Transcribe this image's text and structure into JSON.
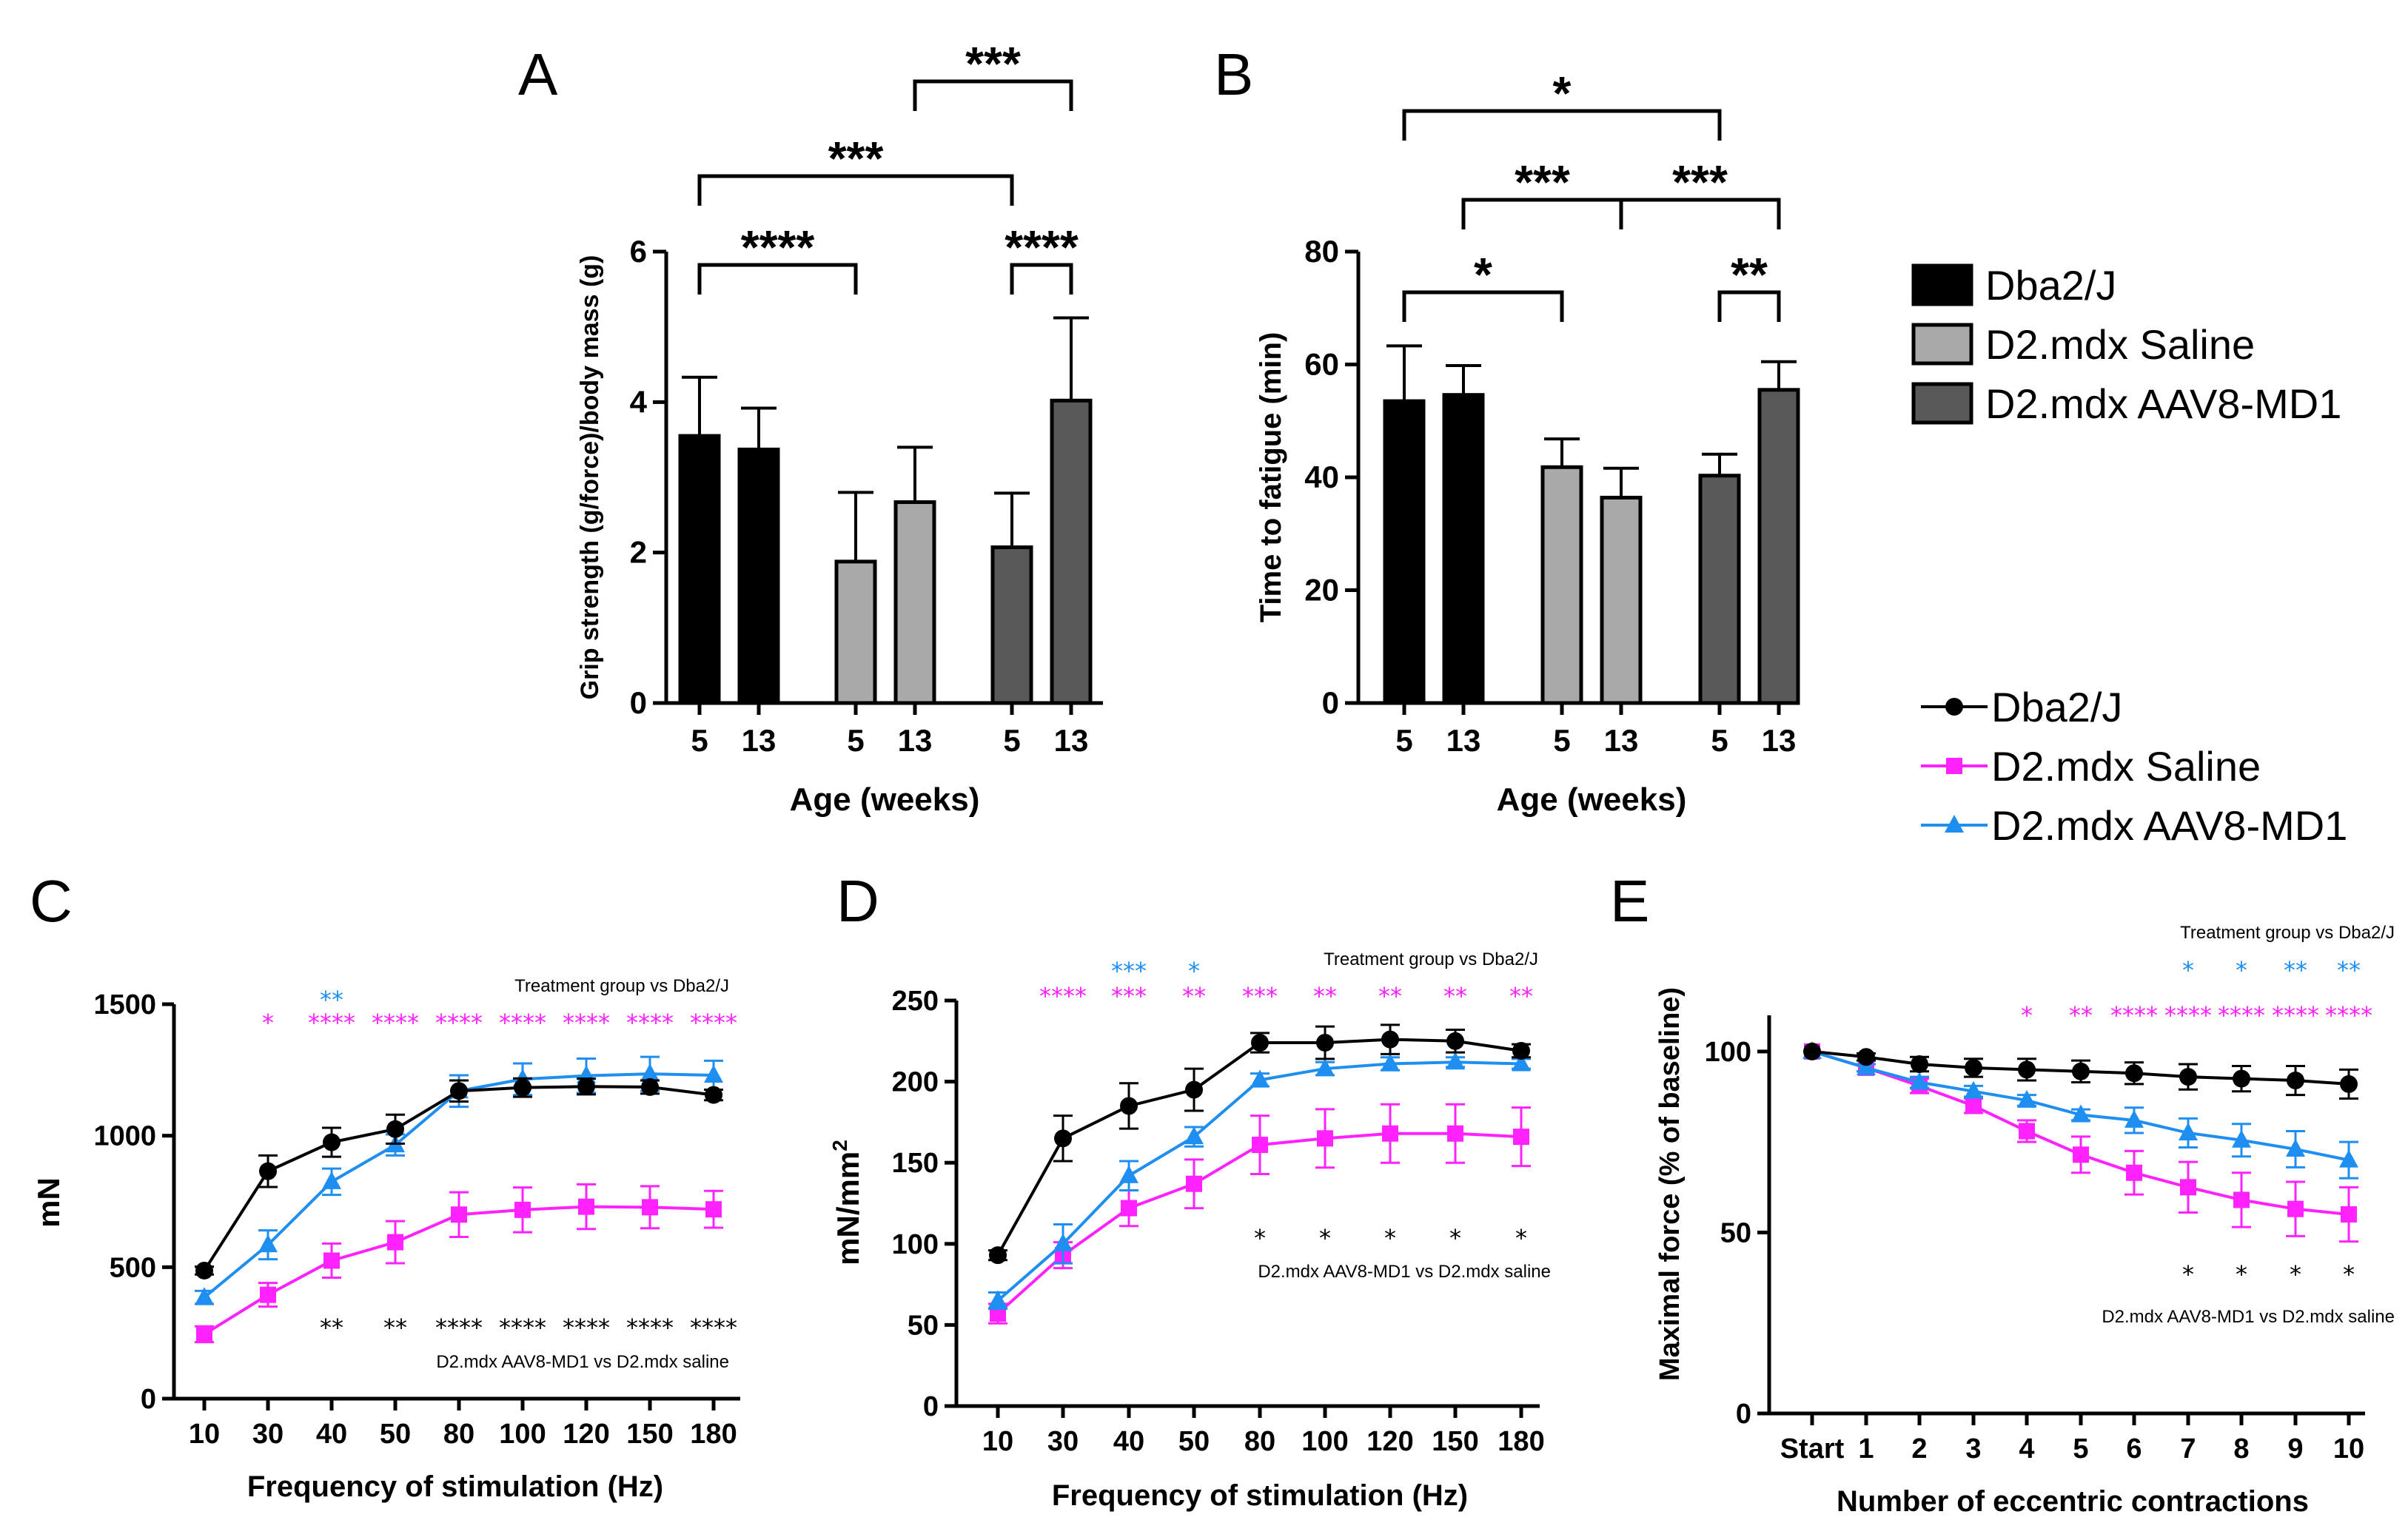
{
  "colors": {
    "black": "#000000",
    "grey": "#a9a9a9",
    "darkgrey": "#595959",
    "magenta": "#ff22ff",
    "blue": "#1e8ff0"
  },
  "legend_bar": [
    {
      "label": "Dba2/J",
      "color": "#000000"
    },
    {
      "label": "D2.mdx Saline",
      "color": "#a9a9a9"
    },
    {
      "label": "D2.mdx AAV8-MD1",
      "color": "#595959"
    }
  ],
  "legend_line": [
    {
      "label": "Dba2/J",
      "color": "#000000",
      "marker": "circle"
    },
    {
      "label": "D2.mdx Saline",
      "color": "#ff22ff",
      "marker": "square"
    },
    {
      "label": "D2.mdx AAV8-MD1",
      "color": "#1e8ff0",
      "marker": "triangle"
    }
  ],
  "chart_data": [
    {
      "panel": "A",
      "type": "bar",
      "xlabel": "Age (weeks)",
      "ylabel": "Grip strength (g/force)/body mass (g)",
      "ylim": [
        0,
        6
      ],
      "yticks": [
        "0",
        "2",
        "4",
        "6"
      ],
      "categories": [
        "5",
        "13",
        "5",
        "13",
        "5",
        "13"
      ],
      "values": [
        3.55,
        3.37,
        1.88,
        2.67,
        2.07,
        4.02
      ],
      "errors": [
        0.78,
        0.55,
        0.92,
        0.73,
        0.72,
        1.1
      ],
      "colors": [
        "#000000",
        "#000000",
        "#a9a9a9",
        "#a9a9a9",
        "#595959",
        "#595959"
      ],
      "brackets": [
        {
          "from": 0,
          "to": 2,
          "label": "****"
        },
        {
          "from": 4,
          "to": 5,
          "label": "****"
        },
        {
          "from": 0,
          "to": 4,
          "label": "***"
        },
        {
          "from": 3,
          "to": 5,
          "label": "***"
        }
      ]
    },
    {
      "panel": "B",
      "type": "bar",
      "xlabel": "Age (weeks)",
      "ylabel": "Time to fatigue (min)",
      "ylim": [
        0,
        80
      ],
      "yticks": [
        "0",
        "20",
        "40",
        "60",
        "80"
      ],
      "categories": [
        "5",
        "13",
        "5",
        "13",
        "5",
        "13"
      ],
      "values": [
        53.5,
        54.6,
        41.8,
        36.4,
        40.3,
        55.5
      ],
      "errors": [
        9.8,
        5.2,
        5.0,
        5.2,
        3.8,
        5.0
      ],
      "colors": [
        "#000000",
        "#000000",
        "#a9a9a9",
        "#a9a9a9",
        "#595959",
        "#595959"
      ],
      "brackets": [
        {
          "from": 0,
          "to": 2,
          "label": "*"
        },
        {
          "from": 4,
          "to": 5,
          "label": "**"
        },
        {
          "from": 1,
          "to": 3,
          "label": "***"
        },
        {
          "from": 3,
          "to": 5,
          "label": "***"
        },
        {
          "from": 0,
          "to": 4,
          "label": "*"
        }
      ]
    },
    {
      "panel": "C",
      "type": "line",
      "xlabel": "Frequency of stimulation (Hz)",
      "ylabel": "mN",
      "ylim": [
        0,
        1500
      ],
      "yticks": [
        "0",
        "500",
        "1000",
        "1500"
      ],
      "categories": [
        "10",
        "30",
        "40",
        "50",
        "80",
        "100",
        "120",
        "150",
        "180"
      ],
      "series": [
        {
          "name": "Dba2/J",
          "color": "#000000",
          "marker": "circle",
          "values": [
            487,
            865,
            975,
            1025,
            1170,
            1183,
            1187,
            1185,
            1155
          ],
          "errors": [
            15,
            60,
            55,
            55,
            40,
            35,
            30,
            25,
            20
          ]
        },
        {
          "name": "D2.mdx Saline",
          "color": "#ff22ff",
          "marker": "square",
          "values": [
            245,
            395,
            525,
            595,
            700,
            718,
            730,
            728,
            720
          ],
          "errors": [
            30,
            45,
            65,
            80,
            85,
            85,
            85,
            80,
            70
          ]
        },
        {
          "name": "D2.mdx AAV8-MD1",
          "color": "#1e8ff0",
          "marker": "triangle",
          "values": [
            385,
            585,
            825,
            965,
            1170,
            1215,
            1228,
            1235,
            1230
          ],
          "errors": [
            25,
            55,
            50,
            40,
            60,
            60,
            65,
            65,
            55
          ]
        }
      ],
      "annotation_top": "Treatment group vs Dba2/J",
      "annotation_bottom": "D2.mdx AAV8-MD1 vs D2.mdx saline",
      "sig_magenta": [
        "",
        "*",
        "****",
        "****",
        "****",
        "****",
        "****",
        "****",
        "****"
      ],
      "sig_blue": [
        "",
        "",
        "**",
        "",
        "",
        "",
        "",
        "",
        ""
      ],
      "sig_black": [
        "",
        "",
        "**",
        "**",
        "****",
        "****",
        "****",
        "****",
        "****"
      ]
    },
    {
      "panel": "D",
      "type": "line",
      "xlabel": "Frequency of stimulation (Hz)",
      "ylabel_main": "mN/mm",
      "ylabel_sup": "2",
      "ylim": [
        0,
        250
      ],
      "yticks": [
        "0",
        "50",
        "100",
        "150",
        "200",
        "250"
      ],
      "categories": [
        "10",
        "30",
        "40",
        "50",
        "80",
        "100",
        "120",
        "150",
        "180"
      ],
      "series": [
        {
          "name": "Dba2/J",
          "color": "#000000",
          "marker": "circle",
          "values": [
            93,
            165,
            185,
            195,
            224,
            224,
            226,
            225,
            219
          ],
          "errors": [
            3,
            14,
            14,
            13,
            6,
            10,
            9,
            7,
            4
          ]
        },
        {
          "name": "D2.mdx Saline",
          "color": "#ff22ff",
          "marker": "square",
          "values": [
            57,
            93,
            122,
            137,
            161,
            165,
            168,
            168,
            166
          ],
          "errors": [
            6,
            8,
            11,
            15,
            18,
            18,
            18,
            18,
            18
          ]
        },
        {
          "name": "D2.mdx AAV8-MD1",
          "color": "#1e8ff0",
          "marker": "triangle",
          "values": [
            65,
            100,
            142,
            166,
            201,
            208,
            211,
            212,
            211
          ],
          "errors": [
            5,
            12,
            9,
            6,
            4,
            4,
            4,
            3,
            3
          ]
        }
      ],
      "annotation_top": "Treatment group vs Dba2/J",
      "annotation_bottom": "D2.mdx AAV8-MD1 vs D2.mdx saline",
      "sig_magenta": [
        "",
        "****",
        "***",
        "**",
        "***",
        "**",
        "**",
        "**",
        "**"
      ],
      "sig_blue": [
        "",
        "",
        "***",
        "*",
        "",
        "",
        "",
        "",
        ""
      ],
      "sig_black": [
        "",
        "",
        "",
        "",
        "*",
        "*",
        "*",
        "*",
        "*"
      ]
    },
    {
      "panel": "E",
      "type": "line",
      "xlabel": "Number of eccentric contractions",
      "ylabel": "Maximal force (% of baseline)",
      "ylim": [
        0,
        110
      ],
      "yticks": [
        "0",
        "50",
        "100"
      ],
      "categories": [
        "Start",
        "1",
        "2",
        "3",
        "4",
        "5",
        "6",
        "7",
        "8",
        "9",
        "10"
      ],
      "series": [
        {
          "name": "Dba2/J",
          "color": "#000000",
          "marker": "circle",
          "values": [
            100,
            98.5,
            96.5,
            95.5,
            95,
            94.5,
            94,
            93,
            92.5,
            92,
            91
          ],
          "errors": [
            0,
            1,
            2,
            2.5,
            3,
            3,
            3,
            3.5,
            3.5,
            4,
            4
          ]
        },
        {
          "name": "D2.mdx Saline",
          "color": "#ff22ff",
          "marker": "square",
          "values": [
            100,
            95.5,
            90.5,
            85,
            78,
            71.5,
            66.5,
            62.5,
            59,
            56.5,
            55
          ],
          "errors": [
            0,
            1,
            2,
            2,
            3,
            5,
            6,
            7,
            7.5,
            7.5,
            7.5
          ]
        },
        {
          "name": "D2.mdx AAV8-MD1",
          "color": "#1e8ff0",
          "marker": "triangle",
          "values": [
            100,
            95.5,
            91.5,
            89,
            86.5,
            82.5,
            81,
            77.5,
            75.5,
            73,
            70
          ],
          "errors": [
            0,
            1,
            1.5,
            1.5,
            1.5,
            1.5,
            3.5,
            4,
            4.5,
            5,
            5
          ]
        }
      ],
      "annotation_top": "Treatment group vs Dba2/J",
      "annotation_bottom": "D2.mdx AAV8-MD1 vs D2.mdx saline",
      "sig_magenta": [
        "",
        "",
        "",
        "",
        "*",
        "**",
        "****",
        "****",
        "****",
        "****",
        "****"
      ],
      "sig_blue": [
        "",
        "",
        "",
        "",
        "",
        "",
        "",
        "*",
        "*",
        "**",
        "**"
      ],
      "sig_black": [
        "",
        "",
        "",
        "",
        "",
        "",
        "",
        "*",
        "*",
        "*",
        "*"
      ]
    }
  ]
}
